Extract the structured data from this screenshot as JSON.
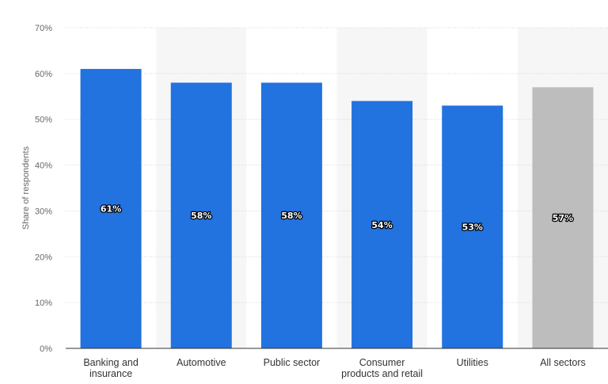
{
  "chart_data": {
    "type": "bar",
    "title": "",
    "xlabel": "",
    "ylabel": "Share of respondents",
    "ylim": [
      0,
      70
    ],
    "yticks": [
      0,
      10,
      20,
      30,
      40,
      50,
      60,
      70
    ],
    "ytick_format": "%",
    "grid": "horizontal-dotted",
    "categories": [
      [
        "Banking and",
        "insurance"
      ],
      [
        "Automotive"
      ],
      [
        "Public sector"
      ],
      [
        "Consumer",
        "products and retail"
      ],
      [
        "Utilities"
      ],
      [
        "All sectors"
      ]
    ],
    "values": [
      61,
      58,
      58,
      54,
      53,
      57
    ],
    "data_labels": [
      "61%",
      "58%",
      "58%",
      "54%",
      "53%",
      "57%"
    ],
    "bar_colors": [
      "#2272e0",
      "#2272e0",
      "#2272e0",
      "#2272e0",
      "#2272e0",
      "#bdbdbd"
    ],
    "band_shading_color": "#f6f6f6"
  }
}
